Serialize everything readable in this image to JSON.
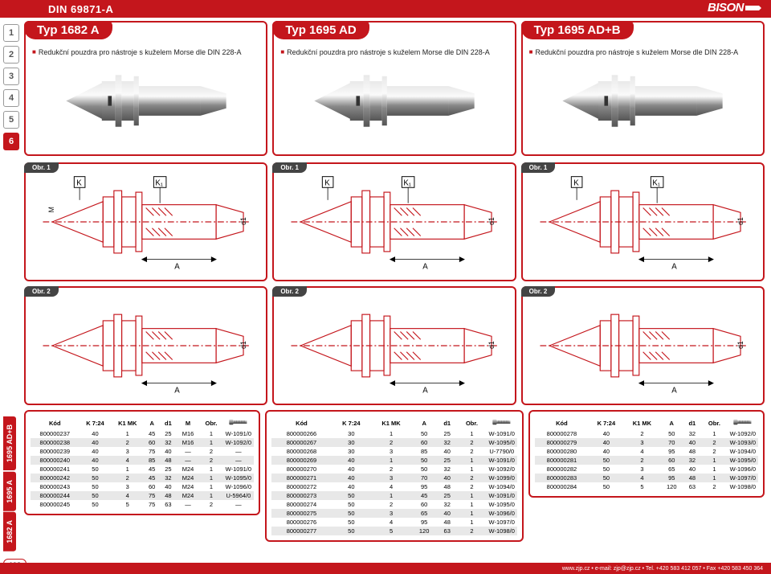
{
  "header": {
    "din": "DIN 69871-A",
    "logo": "BISON"
  },
  "side_nums": [
    "1",
    "2",
    "3",
    "4",
    "5",
    "6"
  ],
  "active_num": "6",
  "side_tabs": [
    "1695 AD+B",
    "1695 A",
    "1682 A"
  ],
  "footer": {
    "page": "198",
    "text": "www.zjp.cz  •  e-mail: zjp@zjp.cz  •  Tel. +420 583 412 057  •  Fax +420 583 450 364"
  },
  "cards": [
    {
      "title": "Typ 1682 A",
      "sub": "Redukční pouzdra pro nástroje s kuželem Morse dle DIN 228-A"
    },
    {
      "title": "Typ 1695 AD",
      "sub": "Redukční pouzdra pro nástroje s kuželem Morse dle DIN 228-A"
    },
    {
      "title": "Typ 1695 AD+B",
      "sub": "Redukční pouzdra pro nástroje s kuželem Morse dle DIN 228-A"
    }
  ],
  "obr1": "Obr. 1",
  "obr2": "Obr. 2",
  "dim_labels": {
    "K": "K",
    "K1": "K₁",
    "M": "M",
    "d1": "d1",
    "A": "A"
  },
  "table1": {
    "headers": [
      "Kód",
      "K 7:24",
      "K1 MK",
      "A",
      "d1",
      "M",
      "Obr."
    ],
    "rows": [
      [
        "800000237",
        "40",
        "1",
        "45",
        "25",
        "M16",
        "1",
        "W-1091/0"
      ],
      [
        "800000238",
        "40",
        "2",
        "60",
        "32",
        "M16",
        "1",
        "W-1092/0"
      ],
      [
        "800000239",
        "40",
        "3",
        "75",
        "40",
        "—",
        "2",
        "—"
      ],
      [
        "800000240",
        "40",
        "4",
        "85",
        "48",
        "—",
        "2",
        "—"
      ],
      [
        "800000241",
        "50",
        "1",
        "45",
        "25",
        "M24",
        "1",
        "W-1091/0"
      ],
      [
        "800000242",
        "50",
        "2",
        "45",
        "32",
        "M24",
        "1",
        "W-1095/0"
      ],
      [
        "800000243",
        "50",
        "3",
        "60",
        "40",
        "M24",
        "1",
        "W-1096/0"
      ],
      [
        "800000244",
        "50",
        "4",
        "75",
        "48",
        "M24",
        "1",
        "U-5964/0"
      ],
      [
        "800000245",
        "50",
        "5",
        "75",
        "63",
        "—",
        "2",
        "—"
      ]
    ]
  },
  "table2": {
    "headers": [
      "Kód",
      "K 7:24",
      "K1 MK",
      "A",
      "d1",
      "Obr."
    ],
    "rows": [
      [
        "800000266",
        "30",
        "1",
        "50",
        "25",
        "1",
        "W-1091/0"
      ],
      [
        "800000267",
        "30",
        "2",
        "60",
        "32",
        "2",
        "W-1095/0"
      ],
      [
        "800000268",
        "30",
        "3",
        "85",
        "40",
        "2",
        "U-7790/0"
      ],
      [
        "800000269",
        "40",
        "1",
        "50",
        "25",
        "1",
        "W-1091/0"
      ],
      [
        "800000270",
        "40",
        "2",
        "50",
        "32",
        "1",
        "W-1092/0"
      ],
      [
        "800000271",
        "40",
        "3",
        "70",
        "40",
        "2",
        "W-1099/0"
      ],
      [
        "800000272",
        "40",
        "4",
        "95",
        "48",
        "2",
        "W-1094/0"
      ],
      [
        "800000273",
        "50",
        "1",
        "45",
        "25",
        "1",
        "W-1091/0"
      ],
      [
        "800000274",
        "50",
        "2",
        "60",
        "32",
        "1",
        "W-1095/0"
      ],
      [
        "800000275",
        "50",
        "3",
        "65",
        "40",
        "1",
        "W-1096/0"
      ],
      [
        "800000276",
        "50",
        "4",
        "95",
        "48",
        "1",
        "W-1097/0"
      ],
      [
        "800000277",
        "50",
        "5",
        "120",
        "63",
        "2",
        "W-1098/0"
      ]
    ]
  },
  "table3": {
    "headers": [
      "Kód",
      "K 7:24",
      "K1 MK",
      "A",
      "d1",
      "Obr."
    ],
    "rows": [
      [
        "800000278",
        "40",
        "2",
        "50",
        "32",
        "1",
        "W-1092/0"
      ],
      [
        "800000279",
        "40",
        "3",
        "70",
        "40",
        "2",
        "W-1093/0"
      ],
      [
        "800000280",
        "40",
        "4",
        "95",
        "48",
        "2",
        "W-1094/0"
      ],
      [
        "800000281",
        "50",
        "2",
        "60",
        "32",
        "1",
        "W-1095/0"
      ],
      [
        "800000282",
        "50",
        "3",
        "65",
        "40",
        "1",
        "W-1096/0"
      ],
      [
        "800000283",
        "50",
        "4",
        "95",
        "48",
        "1",
        "W-1097/0"
      ],
      [
        "800000284",
        "50",
        "5",
        "120",
        "63",
        "2",
        "W-1098/0"
      ]
    ]
  },
  "colors": {
    "brand": "#c4161c",
    "shade": "#e8e8e8",
    "gray": "#444",
    "steel1": "#b8b8b8",
    "steel2": "#6e6e6e"
  }
}
